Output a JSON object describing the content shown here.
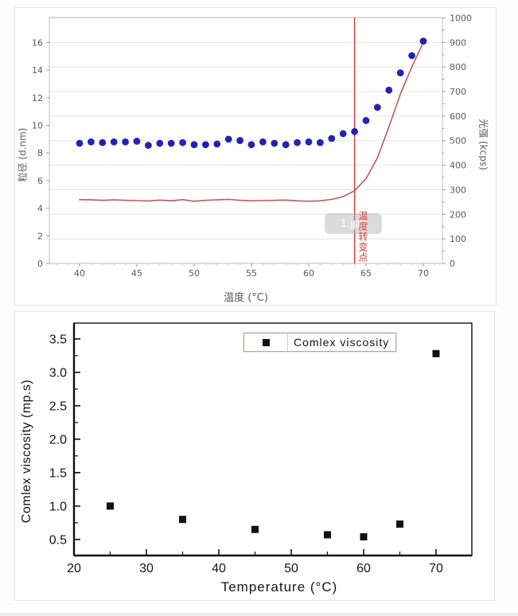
{
  "watermark": {
    "text": "1.jpg"
  },
  "chart_data": [
    {
      "type": "scatter",
      "title": "",
      "xlabel": "温度 (°C)",
      "ylabel_left": "粒径 (d.nm)",
      "ylabel_right": "光强 (kcps)",
      "x_ticks": [
        40,
        45,
        50,
        55,
        60,
        65,
        70
      ],
      "y_left_ticks": [
        0,
        2,
        4,
        6,
        8,
        10,
        12,
        14,
        16
      ],
      "y_right_ticks": [
        0,
        100,
        200,
        300,
        400,
        500,
        600,
        700,
        800,
        900,
        1000
      ],
      "xlim": [
        37.4,
        71.7
      ],
      "ylim_left": [
        0,
        17.85
      ],
      "ylim_right": [
        0,
        1001
      ],
      "grid": "horizontal",
      "colors": {
        "point": "#2323b2",
        "line": "#bc5a5e",
        "grid": "#e4e4e4",
        "axis": "#bdbdbd",
        "tick_text": "#5a5a5a",
        "annotation": "#d23c3c"
      },
      "series": [
        {
          "name": "粒径",
          "axis": "left",
          "style": "points",
          "points": [
            [
              40,
              8.7
            ],
            [
              41,
              8.8
            ],
            [
              42,
              8.75
            ],
            [
              43,
              8.8
            ],
            [
              44,
              8.8
            ],
            [
              45,
              8.85
            ],
            [
              46,
              8.55
            ],
            [
              47,
              8.7
            ],
            [
              48,
              8.7
            ],
            [
              49,
              8.75
            ],
            [
              50,
              8.6
            ],
            [
              51,
              8.6
            ],
            [
              52,
              8.65
            ],
            [
              53,
              9.0
            ],
            [
              54,
              8.9
            ],
            [
              55,
              8.6
            ],
            [
              56,
              8.8
            ],
            [
              57,
              8.7
            ],
            [
              58,
              8.6
            ],
            [
              59,
              8.75
            ],
            [
              60,
              8.8
            ],
            [
              61,
              8.75
            ],
            [
              62,
              9.05
            ],
            [
              63,
              9.4
            ],
            [
              64,
              9.55
            ],
            [
              65,
              10.35
            ],
            [
              66,
              11.3
            ],
            [
              67,
              12.55
            ],
            [
              68,
              13.8
            ],
            [
              69,
              15.05
            ],
            [
              70,
              16.1
            ]
          ]
        },
        {
          "name": "光强",
          "axis": "right",
          "style": "line",
          "points": [
            [
              40,
              260
            ],
            [
              41,
              259
            ],
            [
              42,
              257
            ],
            [
              43,
              259
            ],
            [
              44,
              257
            ],
            [
              45,
              256
            ],
            [
              46,
              254
            ],
            [
              47,
              258
            ],
            [
              48,
              255
            ],
            [
              49,
              260
            ],
            [
              50,
              253
            ],
            [
              51,
              257
            ],
            [
              52,
              259
            ],
            [
              53,
              261
            ],
            [
              54,
              257
            ],
            [
              55,
              255
            ],
            [
              56,
              256
            ],
            [
              57,
              257
            ],
            [
              58,
              258
            ],
            [
              59,
              255
            ],
            [
              60,
              253
            ],
            [
              61,
              255
            ],
            [
              62,
              261
            ],
            [
              63,
              272
            ],
            [
              64,
              296
            ],
            [
              65,
              345
            ],
            [
              66,
              430
            ],
            [
              67,
              556
            ],
            [
              68,
              690
            ],
            [
              69,
              800
            ],
            [
              70,
              900
            ]
          ]
        }
      ],
      "annotation": {
        "x": 64,
        "label": "温度转变点"
      }
    },
    {
      "type": "scatter",
      "title": "",
      "xlabel": "Temperature (°C)",
      "ylabel": "Comlex viscosity (mp.s)",
      "legend": [
        {
          "label": "Comlex viscosity",
          "marker": "black-square"
        }
      ],
      "legend_position": "top-center",
      "x_ticks": [
        20,
        30,
        40,
        50,
        60,
        70
      ],
      "y_ticks": [
        "0.5",
        "1.0",
        "1.5",
        "2.0",
        "2.5",
        "3.0",
        "3.5"
      ],
      "xlim": [
        20,
        75
      ],
      "ylim": [
        0.26,
        3.74
      ],
      "grid": "off",
      "colors": {
        "marker": "#111111",
        "axis": "#111111",
        "tick_text": "#141414",
        "legend_border": "#c69c9c"
      },
      "points": [
        [
          25,
          1.0
        ],
        [
          35,
          0.8
        ],
        [
          45,
          0.65
        ],
        [
          55,
          0.57
        ],
        [
          60,
          0.54
        ],
        [
          65,
          0.73
        ],
        [
          70,
          3.28
        ]
      ]
    }
  ]
}
